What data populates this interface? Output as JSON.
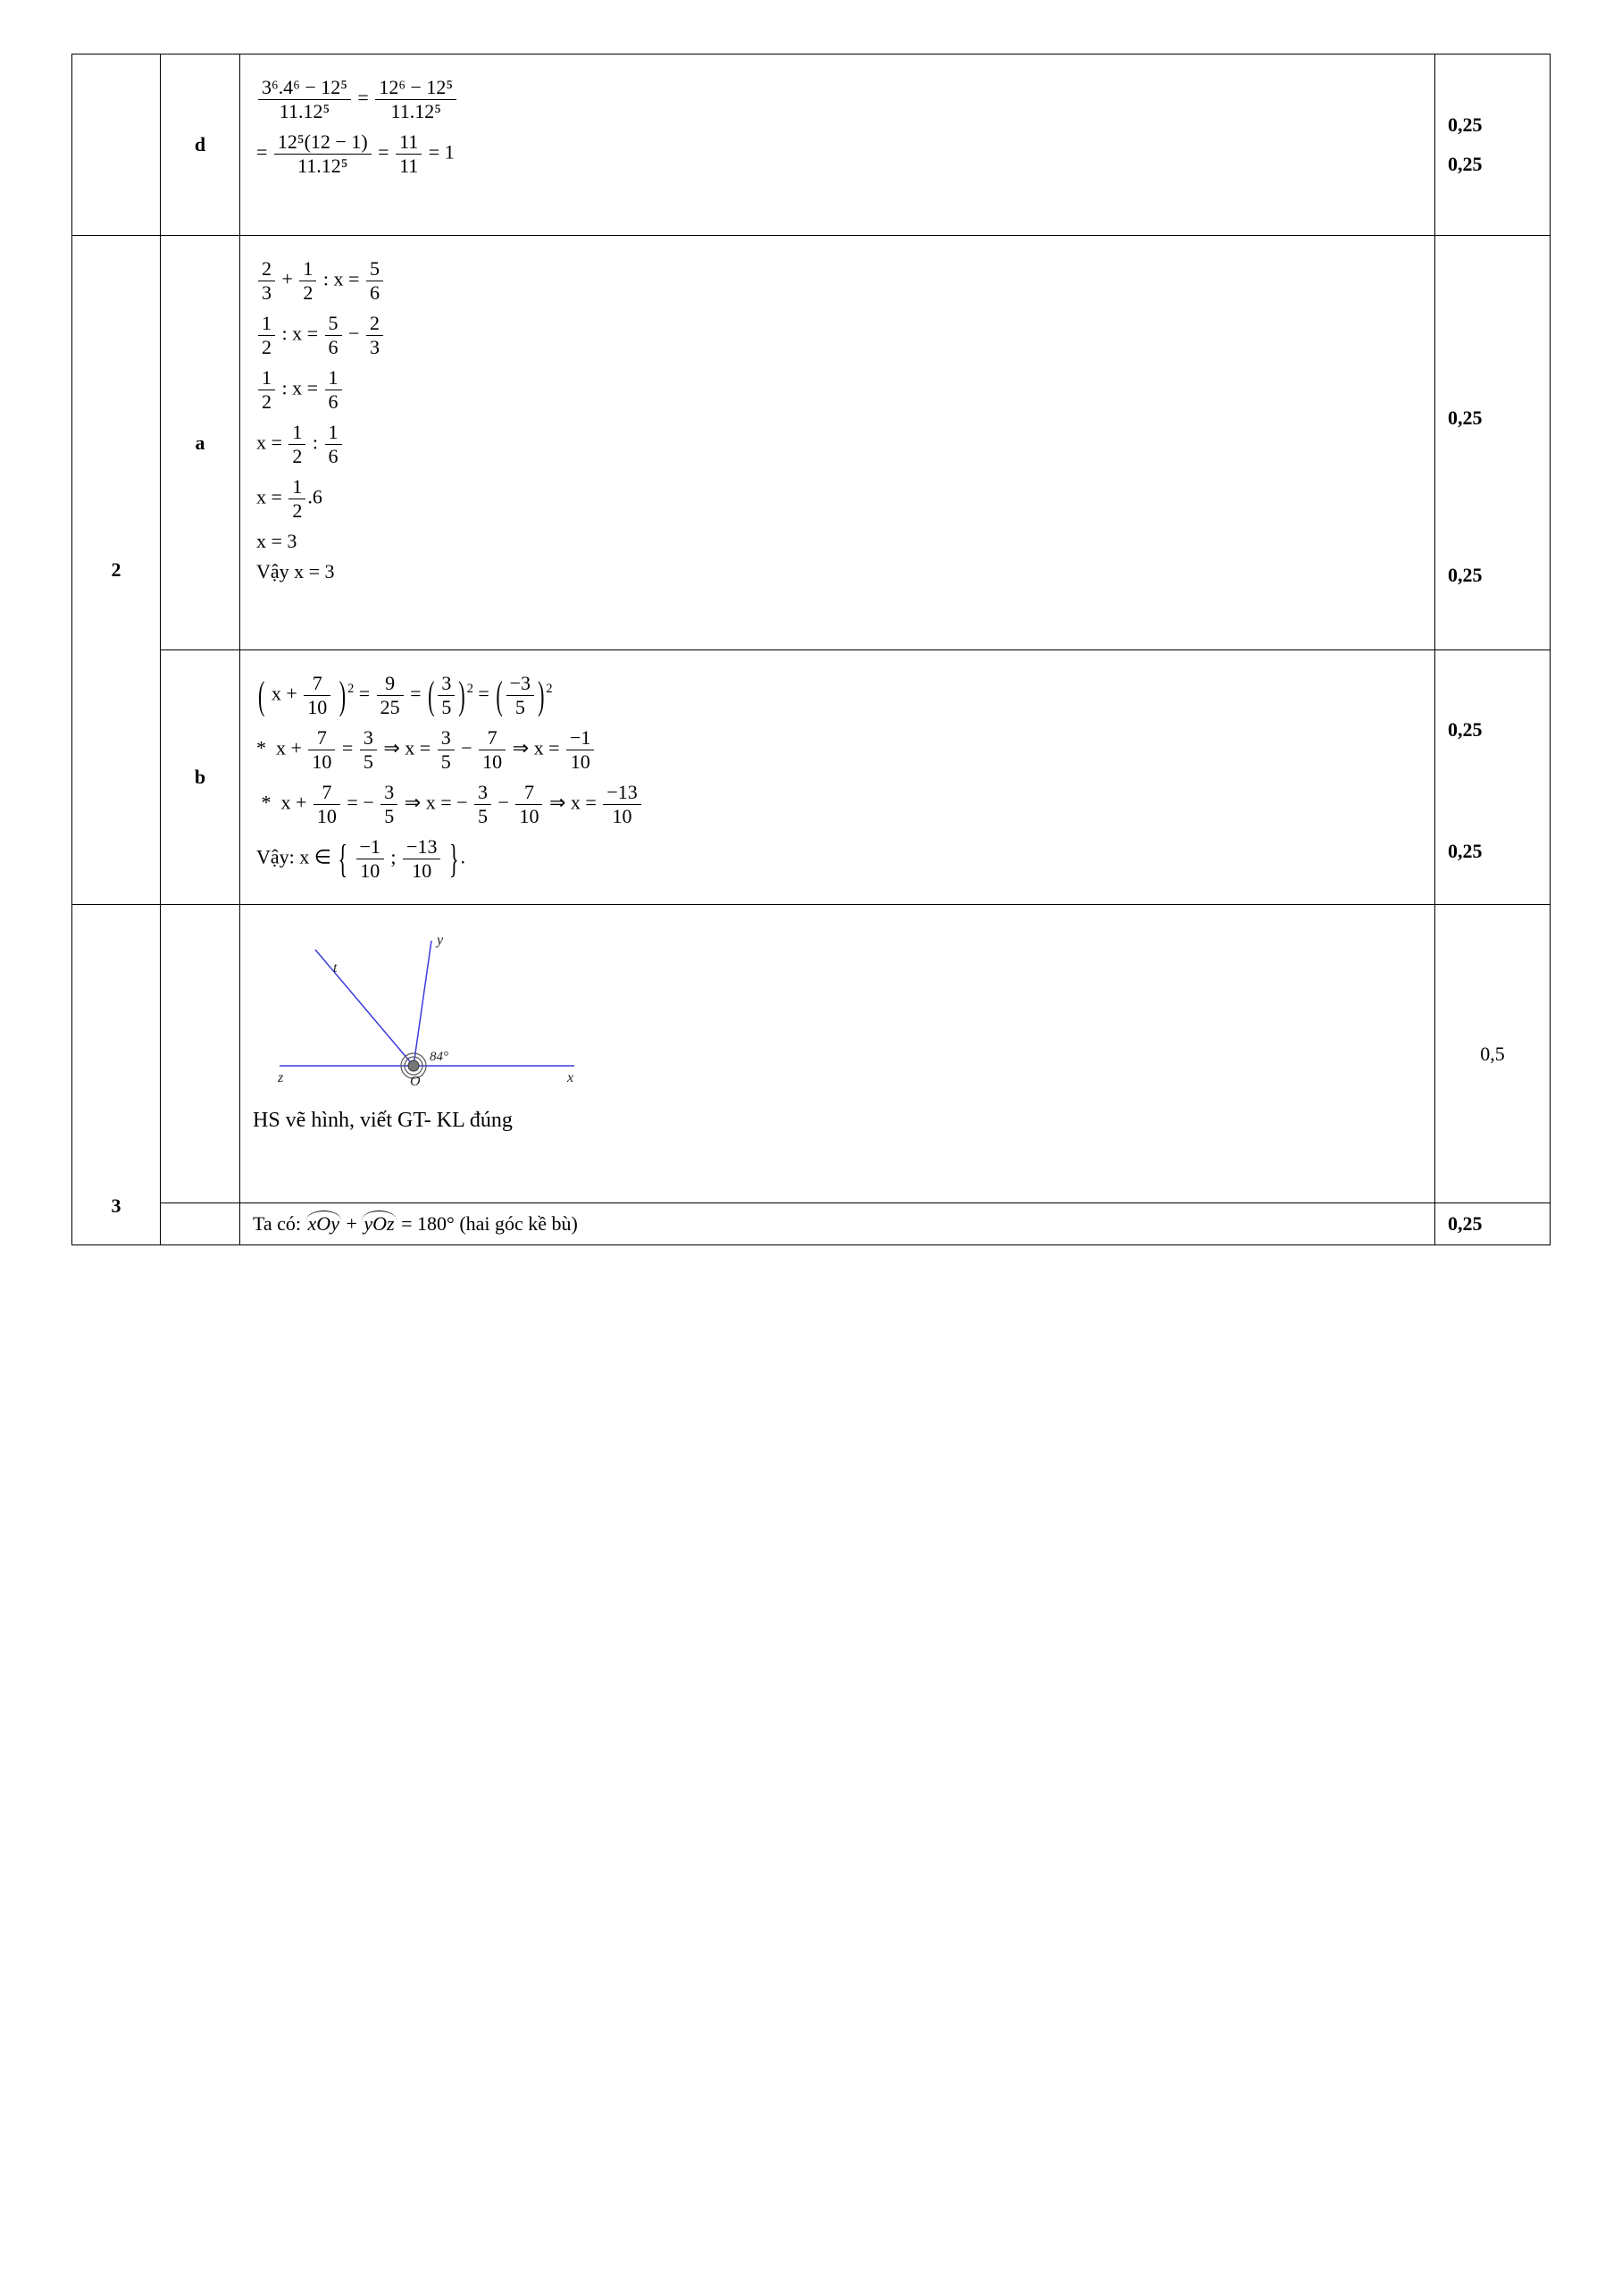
{
  "rows": [
    {
      "q": "",
      "part": "d",
      "work_type": "d",
      "scores": [
        "0,25",
        "0,25"
      ],
      "d": {
        "line1_lhs_num": "3⁶.4⁶ − 12⁵",
        "line1_lhs_den": "11.12⁵",
        "line1_rhs_num": "12⁶ − 12⁵",
        "line1_rhs_den": "11.12⁵",
        "line2_lhs_num": "12⁵(12 − 1)",
        "line2_lhs_den": "11.12⁵",
        "line2_mid_num": "11",
        "line2_mid_den": "11",
        "line2_rhs": "1"
      }
    },
    {
      "q": "2",
      "part": "a",
      "work_type": "a2",
      "scores": [
        "0,25",
        "0,25"
      ],
      "a2": {
        "lines": [
          {
            "left_num": "2",
            "left_den": "3",
            "op1": "+",
            "mid_num": "1",
            "mid_den": "2",
            "op2": ": x =",
            "r_num": "5",
            "r_den": "6"
          },
          {
            "left_num": "1",
            "left_den": "2",
            "op1": ": x =",
            "mid_num": "5",
            "mid_den": "6",
            "op2": "−",
            "r_num": "2",
            "r_den": "3"
          },
          {
            "left_num": "1",
            "left_den": "2",
            "op1": ": x =",
            "mid_num": "1",
            "mid_den": "6",
            "op2": "",
            "r_num": "",
            "r_den": ""
          },
          {
            "prefix": "x =",
            "left_num": "1",
            "left_den": "2",
            "op1": ":",
            "mid_num": "1",
            "mid_den": "6"
          },
          {
            "prefix": "x =",
            "left_num": "1",
            "left_den": "2",
            "op1": ".6"
          },
          {
            "plain": "x = 3"
          },
          {
            "plain": "Vậy x = 3"
          }
        ]
      }
    },
    {
      "q": "",
      "part": "b",
      "work_type": "b2",
      "scores": [
        "0,25",
        "0,25"
      ],
      "b2": {
        "line1": {
          "inside_prefix": "x +",
          "inside_num": "7",
          "inside_den": "10",
          "exp": "2",
          "eq1_num": "9",
          "eq1_den": "25",
          "eq2_num": "3",
          "eq2_den": "5",
          "eq2_exp": "2",
          "eq3_num": "−3",
          "eq3_den": "5",
          "eq3_exp": "2"
        },
        "line2": {
          "star": "*",
          "a_prefix": "x +",
          "a_num": "7",
          "a_den": "10",
          "b_num": "3",
          "b_den": "5",
          "c_prefix": "x =",
          "c1_num": "3",
          "c1_den": "5",
          "c2_num": "7",
          "c2_den": "10",
          "d_prefix": "x =",
          "d_num": "−1",
          "d_den": "10"
        },
        "line3": {
          "star": "*",
          "a_prefix": "x +",
          "a_num": "7",
          "a_den": "10",
          "b_prefix": "−",
          "b_num": "3",
          "b_den": "5",
          "c_prefix": "x = −",
          "c1_num": "3",
          "c1_den": "5",
          "c2_num": "7",
          "c2_den": "10",
          "d_prefix": "x =",
          "d_num": "−13",
          "d_den": "10"
        },
        "line4": {
          "prefix": "Vậy:  x ∈",
          "s1_num": "−1",
          "s1_den": "10",
          "sep": ";",
          "s2_num": "−13",
          "s2_den": "10",
          "suffix": "."
        }
      }
    },
    {
      "q": "3",
      "part": "",
      "work_type": "fig",
      "scores_plain": "0,5",
      "fig": {
        "angle_label": "84°",
        "labels": {
          "x": "x",
          "y": "y",
          "z": "z",
          "t": "t",
          "O": "O"
        },
        "caption": "HS vẽ hình,  viết GT-  KL đúng",
        "colors": {
          "ray": "#3b3bdc",
          "point_fill": "#777777",
          "arc": "#555555"
        },
        "geom": {
          "ox": 180,
          "oy": 160,
          "x_end": [
            360,
            160
          ],
          "z_end": [
            30,
            160
          ],
          "y_end": [
            200,
            20
          ],
          "t_end": [
            70,
            30
          ]
        }
      }
    },
    {
      "q": "",
      "part": "",
      "work_type": "text3",
      "scores": [
        "0,25"
      ],
      "text3": {
        "prefix": "Ta có: ",
        "ang1": "xOy",
        "plus": " + ",
        "ang2": "yOz",
        "rest": " = 180° (hai góc kề bù)"
      }
    }
  ]
}
